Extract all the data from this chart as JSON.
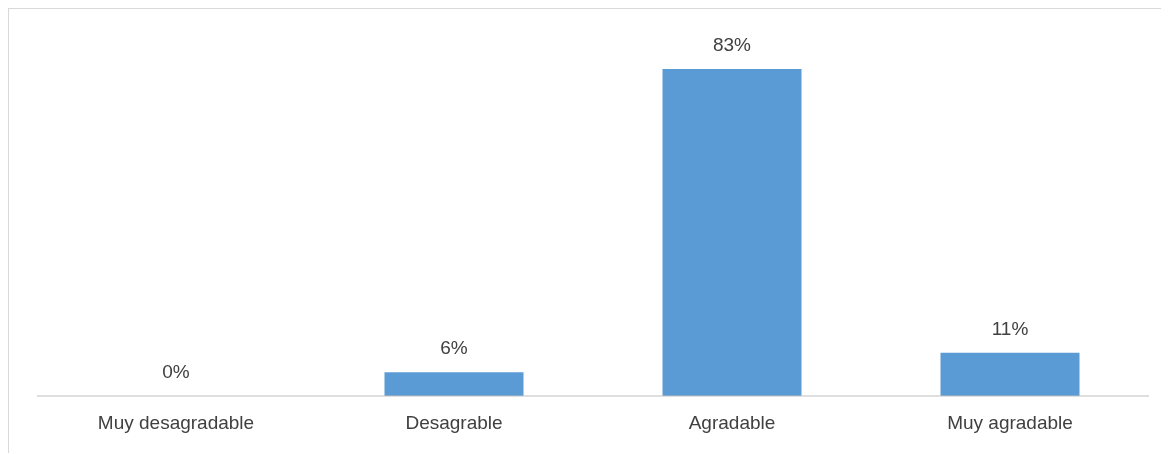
{
  "chart_data": {
    "type": "bar",
    "categories": [
      "Muy desagradable",
      "Desagrable",
      "Agradable",
      "Muy agradable"
    ],
    "values": [
      0,
      6,
      83,
      11
    ],
    "value_labels": [
      "0%",
      "6%",
      "83%",
      "11%"
    ],
    "color": "#5b9bd5"
  }
}
